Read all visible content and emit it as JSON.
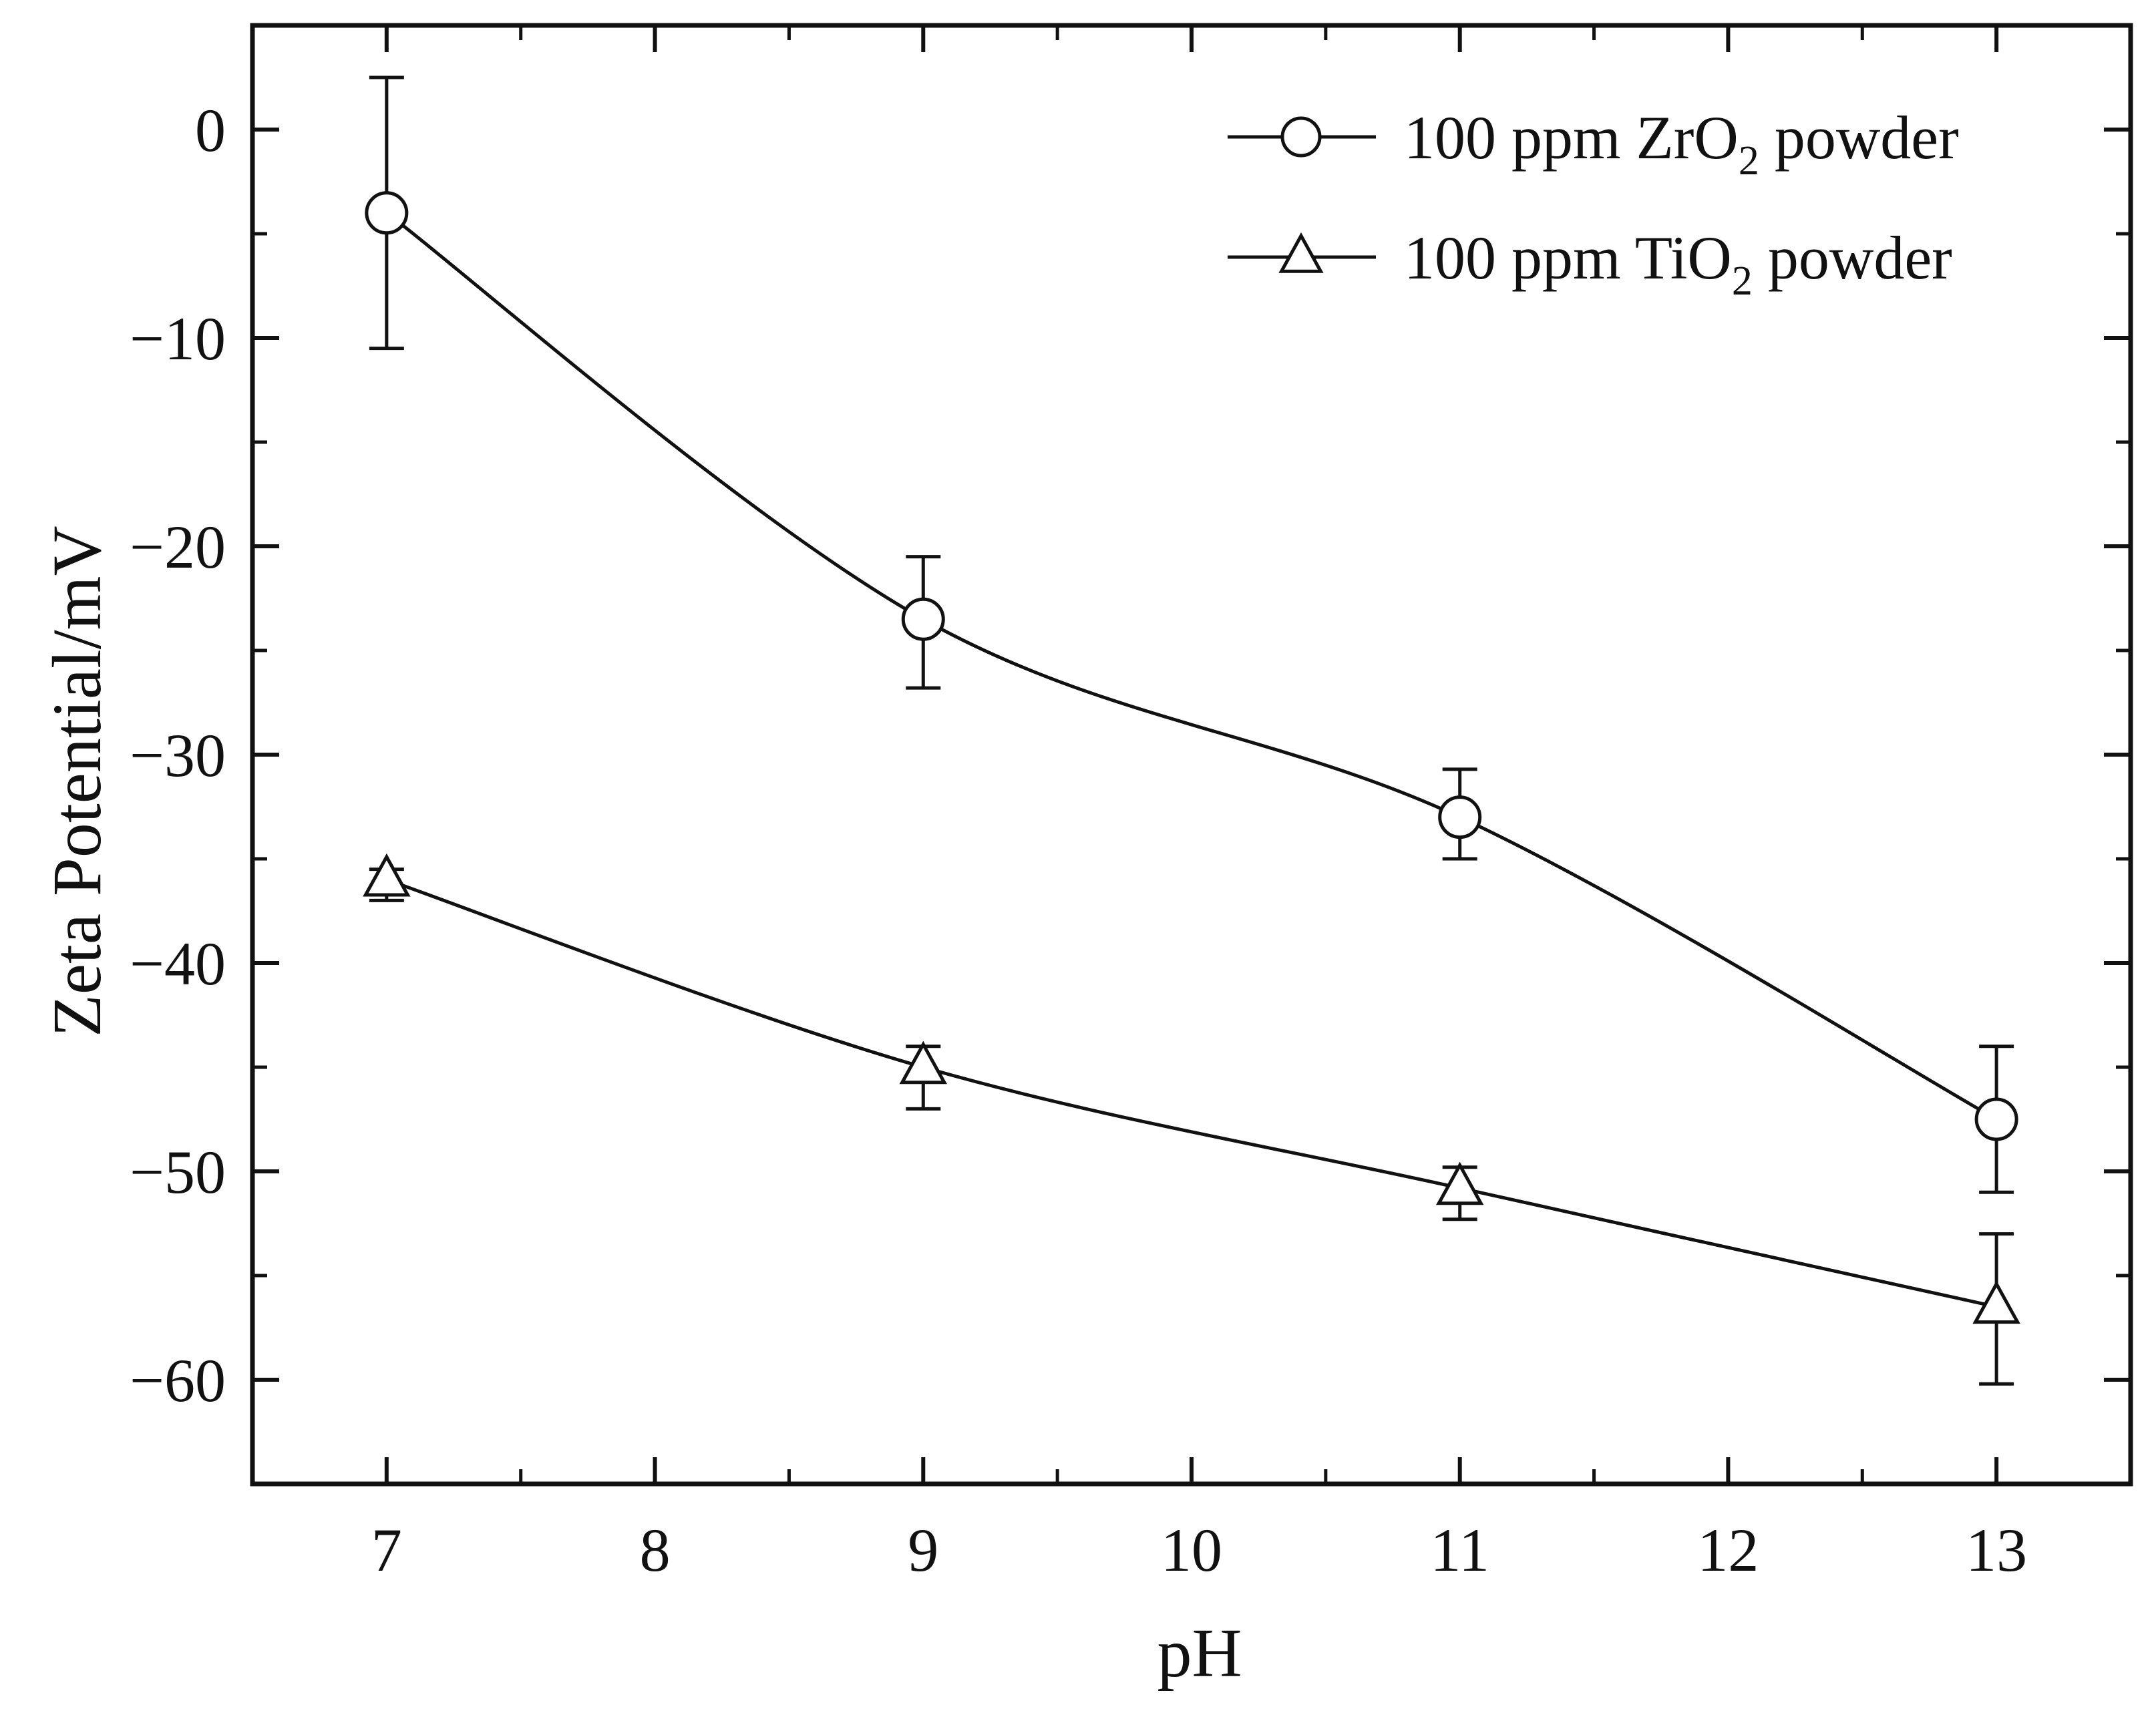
{
  "chart_data": {
    "type": "line",
    "title": "",
    "xlabel": "pH",
    "ylabel": "Zeta Potential/mV",
    "xlim": [
      6.5,
      13.5
    ],
    "ylim": [
      -65,
      5
    ],
    "xticks": [
      7,
      8,
      9,
      10,
      11,
      12,
      13
    ],
    "yticks": [
      0,
      -10,
      -20,
      -30,
      -40,
      -50,
      -60
    ],
    "x_tick_labels": [
      "7",
      "8",
      "9",
      "10",
      "11",
      "12",
      "13"
    ],
    "y_tick_labels": [
      "0",
      "−10",
      "−20",
      "−30",
      "−40",
      "−50",
      "−60"
    ],
    "grid": false,
    "legend_position": "top-right",
    "series": [
      {
        "name": "100 ppm ZrO2 powder",
        "name_main": "100 ppm ZrO",
        "name_sub": "2",
        "name_end": " powder",
        "marker": "circle",
        "x": [
          7,
          9,
          11,
          13
        ],
        "y": [
          -4,
          -23.5,
          -33,
          -47.5
        ],
        "err_upper": [
          2.5,
          -20.5,
          -30.7,
          -44
        ],
        "err_lower": [
          -10.5,
          -26.8,
          -35,
          -51
        ]
      },
      {
        "name": "100 ppm TiO2 powder",
        "name_main": "100 ppm TiO",
        "name_sub": "2",
        "name_end": " powder",
        "marker": "triangle",
        "x": [
          7,
          9,
          11,
          13
        ],
        "y": [
          -36,
          -45,
          -50.8,
          -56.5
        ],
        "err_upper": [
          -35.5,
          -44,
          -49.8,
          -53
        ],
        "err_lower": [
          -37,
          -47,
          -52.3,
          -60.2
        ]
      }
    ],
    "colors": {
      "line": "#111111",
      "marker_fill": "#ffffff"
    }
  }
}
